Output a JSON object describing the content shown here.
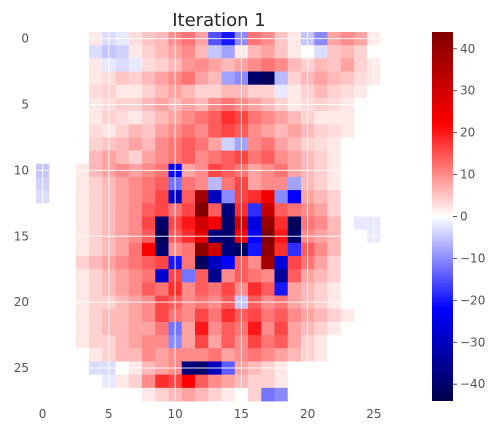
{
  "chart_data": {
    "type": "heatmap",
    "title": "Iteration 1",
    "xlabel": "",
    "ylabel": "",
    "x_ticks": [
      "0",
      "5",
      "10",
      "15",
      "20",
      "25"
    ],
    "y_ticks": [
      "0",
      "5",
      "10",
      "15",
      "20",
      "25"
    ],
    "colorbar_ticks": [
      "40",
      "30",
      "20",
      "10",
      "0",
      "−10",
      "−20",
      "−30",
      "−40"
    ],
    "colormap": "seismic",
    "vmin": -44,
    "vmax": 44,
    "grid": true,
    "grid_color": "#ffffff",
    "rows": 28,
    "cols": 28,
    "values": [
      [
        0,
        0,
        0,
        0,
        2,
        -3,
        -2,
        3,
        5,
        6,
        10,
        12,
        8,
        -15,
        -20,
        -10,
        12,
        10,
        5,
        2,
        -5,
        -10,
        8,
        10,
        8,
        2,
        0,
        0
      ],
      [
        0,
        0,
        0,
        0,
        -3,
        -5,
        -4,
        2,
        4,
        6,
        8,
        10,
        6,
        -5,
        -8,
        2,
        6,
        8,
        5,
        2,
        0,
        -3,
        5,
        6,
        4,
        0,
        0,
        0
      ],
      [
        0,
        0,
        0,
        0,
        2,
        -2,
        -3,
        -2,
        3,
        4,
        6,
        9,
        10,
        8,
        6,
        8,
        10,
        12,
        10,
        6,
        4,
        6,
        5,
        8,
        4,
        2,
        0,
        0
      ],
      [
        0,
        0,
        0,
        0,
        2,
        3,
        5,
        4,
        6,
        8,
        10,
        12,
        8,
        6,
        -8,
        -10,
        -40,
        -42,
        -6,
        4,
        6,
        8,
        6,
        5,
        3,
        2,
        0,
        0
      ],
      [
        0,
        0,
        0,
        0,
        3,
        4,
        2,
        2,
        4,
        6,
        8,
        6,
        4,
        4,
        6,
        6,
        4,
        4,
        -2,
        2,
        4,
        6,
        4,
        3,
        2,
        0,
        0,
        0
      ],
      [
        0,
        0,
        0,
        0,
        2,
        3,
        4,
        4,
        6,
        8,
        6,
        8,
        6,
        10,
        12,
        10,
        8,
        6,
        4,
        2,
        3,
        4,
        3,
        2,
        0,
        0,
        0,
        0
      ],
      [
        0,
        0,
        0,
        0,
        2,
        4,
        3,
        2,
        4,
        6,
        8,
        10,
        12,
        14,
        18,
        16,
        12,
        10,
        8,
        6,
        4,
        2,
        2,
        2,
        0,
        0,
        0,
        0
      ],
      [
        0,
        0,
        0,
        0,
        3,
        2,
        4,
        6,
        5,
        8,
        10,
        12,
        10,
        14,
        16,
        14,
        10,
        8,
        6,
        8,
        6,
        4,
        3,
        2,
        0,
        0,
        0,
        0
      ],
      [
        0,
        0,
        0,
        0,
        4,
        5,
        6,
        8,
        6,
        10,
        12,
        14,
        12,
        8,
        -4,
        -8,
        10,
        12,
        8,
        6,
        4,
        3,
        2,
        0,
        0,
        0,
        0,
        0
      ],
      [
        0,
        0,
        0,
        0,
        6,
        8,
        6,
        4,
        8,
        10,
        12,
        14,
        10,
        12,
        14,
        16,
        12,
        14,
        10,
        8,
        6,
        4,
        2,
        0,
        0,
        0,
        0,
        0
      ],
      [
        -5,
        0,
        0,
        2,
        6,
        8,
        10,
        8,
        10,
        12,
        -22,
        8,
        10,
        16,
        14,
        12,
        8,
        10,
        12,
        8,
        6,
        4,
        2,
        0,
        0,
        0,
        0,
        0
      ],
      [
        -4,
        0,
        0,
        2,
        4,
        6,
        8,
        10,
        12,
        14,
        -12,
        12,
        10,
        -6,
        12,
        16,
        8,
        10,
        10,
        -8,
        6,
        4,
        2,
        0,
        0,
        0,
        0,
        0
      ],
      [
        -3,
        0,
        0,
        2,
        4,
        6,
        8,
        10,
        12,
        16,
        -30,
        14,
        38,
        -30,
        -10,
        16,
        18,
        24,
        -10,
        -22,
        8,
        6,
        4,
        0,
        0,
        0,
        0,
        0
      ],
      [
        0,
        0,
        0,
        2,
        4,
        6,
        8,
        10,
        14,
        16,
        12,
        16,
        44,
        14,
        -38,
        18,
        -18,
        32,
        14,
        12,
        10,
        8,
        4,
        0,
        0,
        0,
        0,
        0
      ],
      [
        0,
        0,
        0,
        2,
        4,
        6,
        8,
        10,
        16,
        -40,
        16,
        20,
        30,
        24,
        -40,
        30,
        -26,
        40,
        18,
        -42,
        12,
        10,
        6,
        0,
        -2,
        -2,
        0,
        0
      ],
      [
        0,
        0,
        0,
        2,
        4,
        6,
        8,
        10,
        14,
        -42,
        14,
        18,
        26,
        -38,
        -40,
        22,
        -22,
        44,
        20,
        -40,
        10,
        8,
        6,
        0,
        0,
        -2,
        0,
        0
      ],
      [
        0,
        0,
        0,
        2,
        4,
        6,
        8,
        12,
        22,
        -40,
        10,
        12,
        42,
        30,
        -38,
        -42,
        -20,
        42,
        18,
        -18,
        14,
        10,
        6,
        0,
        0,
        0,
        0,
        0
      ],
      [
        0,
        0,
        0,
        4,
        6,
        8,
        10,
        12,
        14,
        16,
        -20,
        12,
        -42,
        -30,
        -22,
        14,
        10,
        38,
        -26,
        16,
        12,
        8,
        4,
        0,
        0,
        0,
        0,
        0
      ],
      [
        0,
        0,
        0,
        2,
        4,
        6,
        8,
        10,
        12,
        -28,
        16,
        -12,
        14,
        -36,
        10,
        14,
        12,
        10,
        -34,
        14,
        8,
        6,
        4,
        0,
        0,
        0,
        0,
        0
      ],
      [
        0,
        0,
        0,
        2,
        4,
        6,
        8,
        10,
        14,
        12,
        18,
        10,
        14,
        12,
        16,
        10,
        18,
        14,
        -20,
        8,
        6,
        4,
        2,
        0,
        0,
        0,
        0,
        0
      ],
      [
        0,
        0,
        0,
        2,
        4,
        4,
        6,
        8,
        10,
        16,
        14,
        10,
        12,
        10,
        14,
        -5,
        14,
        10,
        12,
        8,
        6,
        4,
        2,
        0,
        0,
        0,
        0,
        0
      ],
      [
        0,
        0,
        0,
        2,
        4,
        6,
        6,
        8,
        10,
        16,
        12,
        10,
        16,
        12,
        18,
        14,
        16,
        12,
        14,
        10,
        8,
        6,
        4,
        2,
        0,
        0,
        0,
        0
      ],
      [
        0,
        0,
        0,
        2,
        4,
        6,
        6,
        8,
        8,
        12,
        -12,
        8,
        20,
        10,
        14,
        12,
        20,
        10,
        16,
        8,
        6,
        4,
        2,
        0,
        0,
        0,
        0,
        0
      ],
      [
        0,
        0,
        0,
        2,
        4,
        4,
        6,
        8,
        10,
        10,
        -10,
        8,
        16,
        8,
        14,
        10,
        16,
        12,
        14,
        8,
        4,
        2,
        0,
        0,
        0,
        0,
        0,
        0
      ],
      [
        0,
        0,
        0,
        0,
        2,
        4,
        6,
        6,
        10,
        8,
        10,
        10,
        10,
        12,
        8,
        10,
        12,
        10,
        8,
        6,
        4,
        2,
        0,
        0,
        0,
        0,
        0,
        0
      ],
      [
        0,
        0,
        0,
        0,
        -3,
        -3,
        0,
        2,
        6,
        8,
        10,
        -38,
        -40,
        -30,
        -14,
        8,
        6,
        4,
        2,
        0,
        0,
        0,
        0,
        0,
        0,
        0,
        0,
        0
      ],
      [
        0,
        0,
        0,
        0,
        0,
        -2,
        2,
        4,
        10,
        18,
        16,
        22,
        14,
        10,
        8,
        6,
        4,
        4,
        2,
        0,
        0,
        0,
        0,
        0,
        0,
        0,
        0,
        0
      ],
      [
        0,
        0,
        0,
        0,
        0,
        0,
        0,
        0,
        2,
        4,
        6,
        8,
        6,
        4,
        2,
        0,
        4,
        -12,
        -10,
        0,
        0,
        0,
        0,
        0,
        0,
        0,
        0,
        0
      ]
    ]
  }
}
